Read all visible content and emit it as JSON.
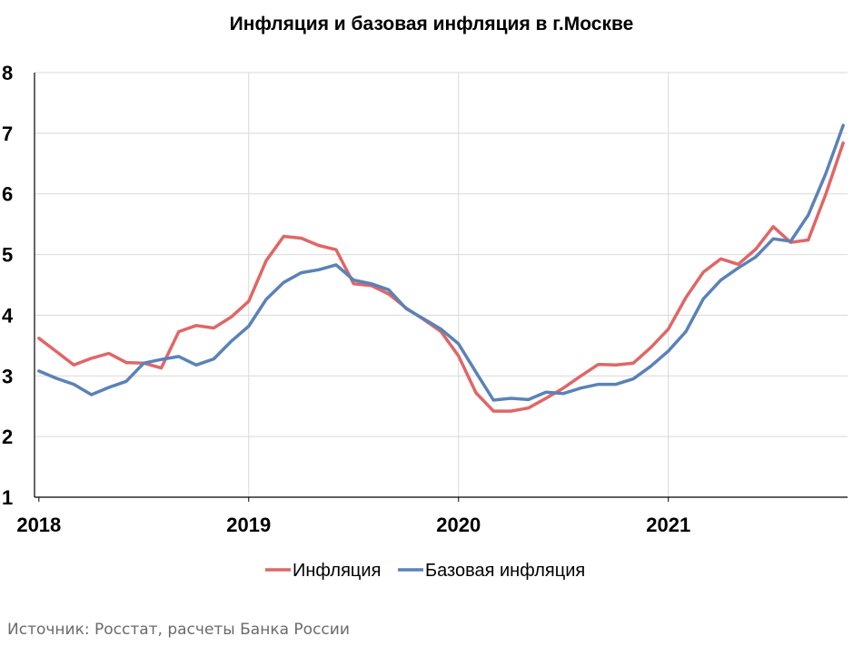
{
  "chart_data": {
    "type": "line",
    "title": "Инфляция и базовая инфляция в г.Москве",
    "source": "Источник: Росстат, расчеты Банка России",
    "xlabel": "",
    "ylabel": "",
    "ylim": [
      1,
      8
    ],
    "y_ticks": [
      1,
      2,
      3,
      4,
      5,
      6,
      7,
      8
    ],
    "xlim": [
      "2018-01",
      "2021-11"
    ],
    "x_ticks": [
      {
        "label": "2018",
        "x": "2018-01"
      },
      {
        "label": "2019",
        "x": "2019-01"
      },
      {
        "label": "2020",
        "x": "2020-01"
      },
      {
        "label": "2021",
        "x": "2021-01"
      }
    ],
    "grid": true,
    "legend": "bottom",
    "x": [
      "2018-01",
      "2018-02",
      "2018-03",
      "2018-04",
      "2018-05",
      "2018-06",
      "2018-07",
      "2018-08",
      "2018-09",
      "2018-10",
      "2018-11",
      "2018-12",
      "2019-01",
      "2019-02",
      "2019-03",
      "2019-04",
      "2019-05",
      "2019-06",
      "2019-07",
      "2019-08",
      "2019-09",
      "2019-10",
      "2019-11",
      "2019-12",
      "2020-01",
      "2020-02",
      "2020-03",
      "2020-04",
      "2020-05",
      "2020-06",
      "2020-07",
      "2020-08",
      "2020-09",
      "2020-10",
      "2020-11",
      "2020-12",
      "2021-01",
      "2021-02",
      "2021-03",
      "2021-04",
      "2021-05",
      "2021-06",
      "2021-07",
      "2021-08",
      "2021-09",
      "2021-10",
      "2021-11"
    ],
    "series": [
      {
        "name": "Инфляция",
        "color": "#e06666",
        "values": [
          3.62,
          3.4,
          3.18,
          3.29,
          3.37,
          3.22,
          3.21,
          3.13,
          3.73,
          3.83,
          3.79,
          3.97,
          4.23,
          4.9,
          5.3,
          5.27,
          5.15,
          5.08,
          4.52,
          4.49,
          4.35,
          4.12,
          3.93,
          3.73,
          3.33,
          2.72,
          2.42,
          2.42,
          2.47,
          2.63,
          2.8,
          3.0,
          3.19,
          3.18,
          3.21,
          3.47,
          3.77,
          4.29,
          4.71,
          4.93,
          4.84,
          5.09,
          5.46,
          5.2,
          5.24,
          5.99,
          6.84
        ]
      },
      {
        "name": "Базовая инфляция",
        "color": "#5a82b8",
        "values": [
          3.08,
          2.96,
          2.86,
          2.69,
          2.81,
          2.91,
          3.21,
          3.27,
          3.32,
          3.18,
          3.28,
          3.57,
          3.82,
          4.26,
          4.54,
          4.7,
          4.75,
          4.83,
          4.58,
          4.52,
          4.42,
          4.11,
          3.94,
          3.77,
          3.53,
          3.06,
          2.6,
          2.63,
          2.61,
          2.73,
          2.71,
          2.8,
          2.86,
          2.86,
          2.95,
          3.16,
          3.41,
          3.73,
          4.27,
          4.58,
          4.78,
          4.96,
          5.26,
          5.22,
          5.65,
          6.33,
          7.13
        ]
      }
    ]
  }
}
